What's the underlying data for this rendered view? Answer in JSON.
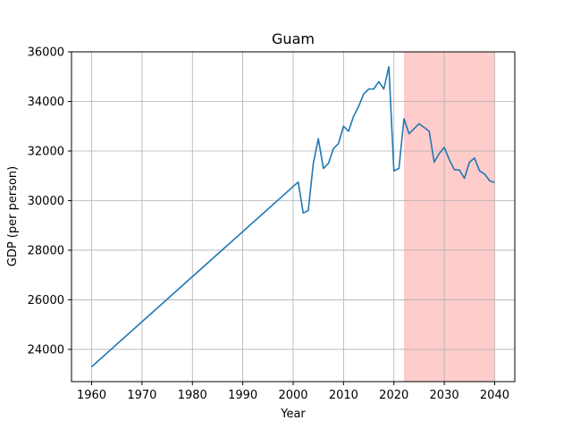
{
  "chart_data": {
    "type": "line",
    "title": "Guam",
    "xlabel": "Year",
    "ylabel": "GDP (per person)",
    "xlim": [
      1956,
      2044
    ],
    "ylim": [
      22700,
      36000
    ],
    "grid": true,
    "xticks": [
      1960,
      1970,
      1980,
      1990,
      2000,
      2010,
      2020,
      2030,
      2040
    ],
    "yticks": [
      24000,
      26000,
      28000,
      30000,
      32000,
      34000,
      36000
    ],
    "line_color": "#1f77b4",
    "highlight": {
      "x_start": 2022,
      "x_end": 2040,
      "color": "#ffcccc"
    },
    "series": [
      {
        "x": [
          1960,
          2001,
          2002,
          2003,
          2004,
          2005,
          2006,
          2007,
          2008,
          2009,
          2010,
          2011,
          2012,
          2013,
          2014,
          2015,
          2016,
          2017,
          2018,
          2019,
          2020,
          2021,
          2022,
          2023,
          2024,
          2025,
          2026,
          2027,
          2028,
          2029,
          2030,
          2031,
          2032,
          2033,
          2034,
          2035,
          2036,
          2037,
          2038,
          2039,
          2040
        ],
        "y": [
          23300,
          30750,
          29500,
          29600,
          31500,
          32500,
          31300,
          31500,
          32100,
          32300,
          33000,
          32800,
          33400,
          33800,
          34300,
          34500,
          34500,
          34800,
          34500,
          35400,
          31200,
          31300,
          33300,
          32700,
          32900,
          33100,
          32950,
          32800,
          31550,
          31900,
          32150,
          31650,
          31250,
          31230,
          30900,
          31550,
          31720,
          31200,
          31070,
          30800,
          30730
        ]
      }
    ]
  }
}
